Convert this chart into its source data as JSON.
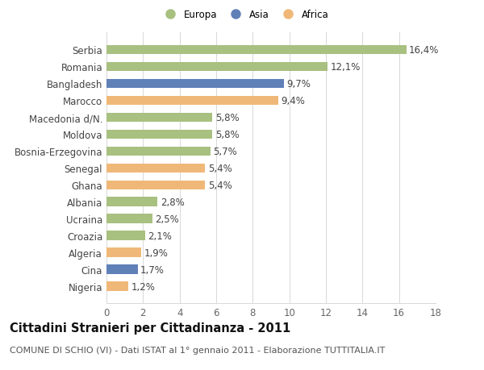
{
  "categories": [
    "Nigeria",
    "Cina",
    "Algeria",
    "Croazia",
    "Ucraina",
    "Albania",
    "Ghana",
    "Senegal",
    "Bosnia-Erzegovina",
    "Moldova",
    "Macedonia d/N.",
    "Marocco",
    "Bangladesh",
    "Romania",
    "Serbia"
  ],
  "values": [
    1.2,
    1.7,
    1.9,
    2.1,
    2.5,
    2.8,
    5.4,
    5.4,
    5.7,
    5.8,
    5.8,
    9.4,
    9.7,
    12.1,
    16.4
  ],
  "continents": [
    "Africa",
    "Asia",
    "Africa",
    "Europa",
    "Europa",
    "Europa",
    "Africa",
    "Africa",
    "Europa",
    "Europa",
    "Europa",
    "Africa",
    "Asia",
    "Europa",
    "Europa"
  ],
  "colors": {
    "Europa": "#a8c080",
    "Asia": "#6080b8",
    "Africa": "#f0b878"
  },
  "title": "Cittadini Stranieri per Cittadinanza - 2011",
  "subtitle": "COMUNE DI SCHIO (VI) - Dati ISTAT al 1° gennaio 2011 - Elaborazione TUTTITALIA.IT",
  "xlim": [
    0,
    18
  ],
  "xticks": [
    0,
    2,
    4,
    6,
    8,
    10,
    12,
    14,
    16,
    18
  ],
  "background_color": "#ffffff",
  "grid_color": "#d8d8d8",
  "bar_height": 0.55,
  "title_fontsize": 10.5,
  "subtitle_fontsize": 8,
  "label_fontsize": 8.5,
  "tick_fontsize": 8.5,
  "value_fontsize": 8.5
}
